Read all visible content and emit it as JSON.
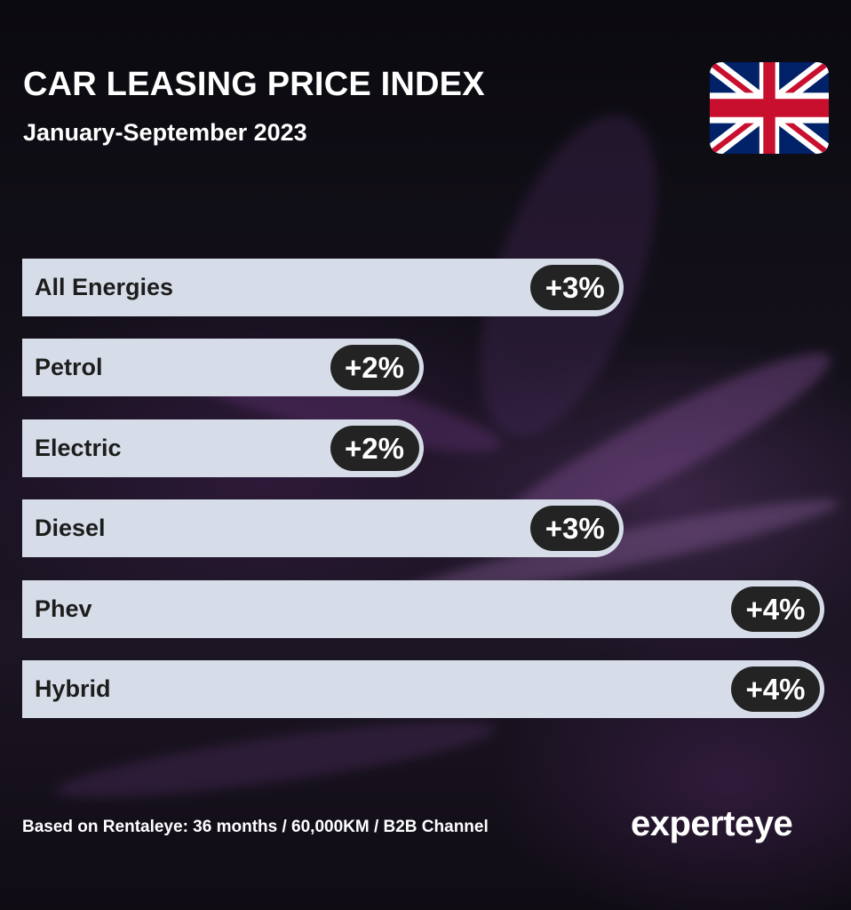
{
  "header": {
    "title": "CAR LEASING PRICE INDEX",
    "subtitle": "January-September 2023"
  },
  "flag": {
    "icon": "uk-flag-icon",
    "colors": {
      "blue": "#012169",
      "red": "#C8102E",
      "white": "#FFFFFF"
    }
  },
  "chart_data": {
    "type": "bar",
    "orientation": "horizontal",
    "categories": [
      "All Energies",
      "Petrol",
      "Electric",
      "Diesel",
      "Phev",
      "Hybrid"
    ],
    "values": [
      3,
      2,
      2,
      3,
      4,
      4
    ],
    "value_labels": [
      "+3%",
      "+2%",
      "+2%",
      "+3%",
      "+4%",
      "+4%"
    ],
    "title": "CAR LEASING PRICE INDEX",
    "subtitle": "January-September 2023",
    "xlim": [
      0,
      4
    ],
    "grid": false,
    "bar_color": "#d6dde8",
    "label_pill_color": "#232323"
  },
  "footer": {
    "note": "Based on Rentaleye:  36 months  / 60,000KM / B2B Channel",
    "logo": "experteye"
  }
}
